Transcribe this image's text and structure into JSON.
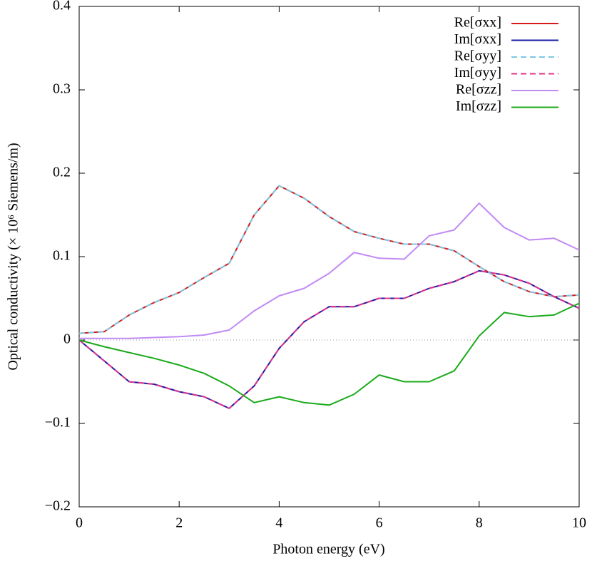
{
  "chart_data": {
    "type": "line",
    "xlabel": "Photon energy (eV)",
    "ylabel": "Optical conductivity (× 10⁶ Siemens/m)",
    "x": [
      0,
      0.5,
      1,
      1.5,
      2,
      2.5,
      3,
      3.5,
      4,
      4.5,
      5,
      5.5,
      6,
      6.5,
      7,
      7.5,
      8,
      8.5,
      9,
      9.5,
      10
    ],
    "series": [
      {
        "name": "Re[σxx]",
        "color": "#d7191c",
        "dashed": false,
        "values": [
          0.008,
          0.01,
          0.03,
          0.045,
          0.057,
          0.075,
          0.092,
          0.15,
          0.185,
          0.17,
          0.148,
          0.13,
          0.122,
          0.115,
          0.115,
          0.107,
          0.088,
          0.07,
          0.058,
          0.052,
          0.054
        ]
      },
      {
        "name": "Im[σxx]",
        "color": "#1a1aa6",
        "dashed": false,
        "values": [
          0,
          -0.025,
          -0.05,
          -0.053,
          -0.062,
          -0.068,
          -0.082,
          -0.055,
          -0.01,
          0.022,
          0.04,
          0.04,
          0.05,
          0.05,
          0.062,
          0.07,
          0.083,
          0.078,
          0.068,
          0.052,
          0.038
        ]
      },
      {
        "name": "Re[σyy]",
        "color": "#7ec8e3",
        "dashed": true,
        "values": [
          0.008,
          0.01,
          0.03,
          0.045,
          0.057,
          0.075,
          0.092,
          0.15,
          0.185,
          0.17,
          0.148,
          0.13,
          0.122,
          0.115,
          0.115,
          0.107,
          0.088,
          0.07,
          0.058,
          0.052,
          0.054
        ]
      },
      {
        "name": "Im[σyy]",
        "color": "#e0338a",
        "dashed": true,
        "values": [
          0,
          -0.025,
          -0.05,
          -0.053,
          -0.062,
          -0.068,
          -0.082,
          -0.055,
          -0.01,
          0.022,
          0.04,
          0.04,
          0.05,
          0.05,
          0.062,
          0.07,
          0.083,
          0.078,
          0.068,
          0.052,
          0.038
        ]
      },
      {
        "name": "Re[σzz]",
        "color": "#c08af5",
        "dashed": false,
        "values": [
          0.002,
          0.002,
          0.002,
          0.003,
          0.004,
          0.006,
          0.012,
          0.035,
          0.053,
          0.062,
          0.08,
          0.105,
          0.098,
          0.097,
          0.125,
          0.132,
          0.164,
          0.135,
          0.12,
          0.122,
          0.108
        ]
      },
      {
        "name": "Im[σzz]",
        "color": "#1aaa1a",
        "dashed": false,
        "values": [
          0,
          -0.008,
          -0.015,
          -0.022,
          -0.03,
          -0.04,
          -0.055,
          -0.075,
          -0.068,
          -0.075,
          -0.078,
          -0.065,
          -0.042,
          -0.05,
          -0.05,
          -0.037,
          0.005,
          0.033,
          0.028,
          0.03,
          0.044
        ]
      }
    ],
    "xlim": [
      0,
      10
    ],
    "xticks": [
      0,
      2,
      4,
      6,
      8,
      10
    ],
    "ylim": [
      -0.2,
      0.4
    ],
    "yticks": [
      {
        "value": -0.2,
        "label": "−0.2"
      },
      {
        "value": -0.1,
        "label": "−0.1"
      },
      0,
      0.1,
      0.2,
      0.3,
      0.4
    ],
    "legend": "upper right"
  }
}
